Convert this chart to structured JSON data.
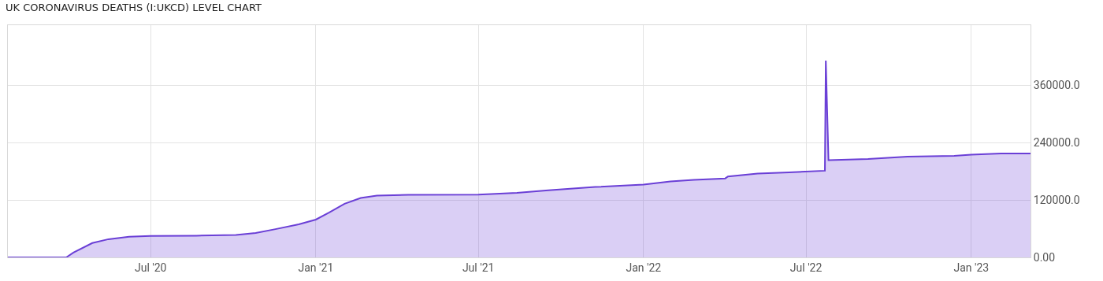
{
  "chart_data": {
    "type": "area",
    "title": "UK CORONAVIRUS DEATHS (I:UKCD) LEVEL CHART",
    "x": [
      "2020-01-24",
      "2020-03-29",
      "2020-04-06",
      "2020-04-27",
      "2020-05-15",
      "2020-06-07",
      "2020-07-01",
      "2020-08-21",
      "2020-10-04",
      "2020-10-26",
      "2020-11-17",
      "2020-12-13",
      "2021-01-01",
      "2021-01-16",
      "2021-02-02",
      "2021-02-20",
      "2021-03-10",
      "2021-04-14",
      "2021-07-01",
      "2021-08-13",
      "2021-09-17",
      "2021-11-08",
      "2022-01-01",
      "2022-01-31",
      "2022-02-26",
      "2022-04-02",
      "2022-04-05",
      "2022-05-08",
      "2022-06-12",
      "2022-07-22",
      "2022-07-23",
      "2022-07-26",
      "2022-09-08",
      "2022-10-22",
      "2022-12-13",
      "2023-01-01",
      "2023-02-03",
      "2023-03-08"
    ],
    "series": [
      {
        "color": "#6a3fd6",
        "values": [
          0,
          0,
          10000,
          30000,
          38000,
          43000,
          44600,
          45400,
          47000,
          51000,
          59000,
          69000,
          79000,
          94000,
          112000,
          124000,
          129000,
          130500,
          131300,
          135000,
          140000,
          147000,
          152000,
          158500,
          162000,
          165000,
          169000,
          175000,
          177500,
          181000,
          411000,
          203000,
          205500,
          210500,
          212000,
          214500,
          217000,
          217000
        ]
      }
    ],
    "xlim": [
      "2020-01-24",
      "2023-03-08"
    ],
    "xticks": [
      {
        "value": "2020-07-01",
        "label": "Jul '20"
      },
      {
        "value": "2021-01-01",
        "label": "Jan '21"
      },
      {
        "value": "2021-07-01",
        "label": "Jul '21"
      },
      {
        "value": "2022-01-01",
        "label": "Jan '22"
      },
      {
        "value": "2022-07-01",
        "label": "Jul '22"
      },
      {
        "value": "2023-01-01",
        "label": "Jan '23"
      }
    ],
    "ylim": [
      0,
      485000
    ],
    "yticks": [
      {
        "value": 0,
        "label": "0.00"
      },
      {
        "value": 120000,
        "label": "120000.0"
      },
      {
        "value": 240000,
        "label": "240000.0"
      },
      {
        "value": 360000,
        "label": "360000.0"
      }
    ],
    "grid": true,
    "legend": false
  }
}
